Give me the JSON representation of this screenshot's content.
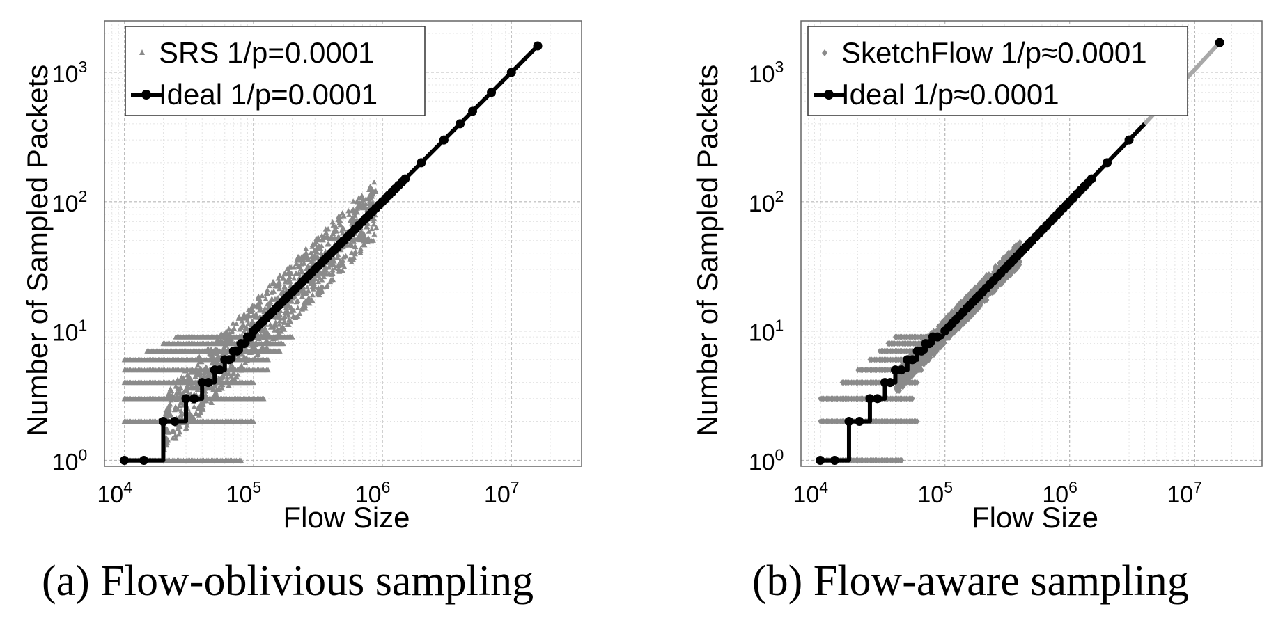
{
  "chart_data": [
    {
      "id": "a",
      "type": "scatter",
      "caption": "(a) Flow-oblivious sampling",
      "xlabel": "Flow Size",
      "ylabel": "Number of Sampled Packets",
      "xscale": "log",
      "yscale": "log",
      "xlim": [
        7000,
        35000000
      ],
      "ylim": [
        0.9,
        2500
      ],
      "xticks": [
        {
          "value": 10000,
          "base": "10",
          "exp": "4"
        },
        {
          "value": 100000,
          "base": "10",
          "exp": "5"
        },
        {
          "value": 1000000,
          "base": "10",
          "exp": "6"
        },
        {
          "value": 10000000,
          "base": "10",
          "exp": "7"
        }
      ],
      "yticks": [
        {
          "value": 1,
          "base": "10",
          "exp": "0"
        },
        {
          "value": 10,
          "base": "10",
          "exp": "1"
        },
        {
          "value": 100,
          "base": "10",
          "exp": "2"
        },
        {
          "value": 1000,
          "base": "10",
          "exp": "3"
        }
      ],
      "grid": true,
      "legend_position": "top-left",
      "series": [
        {
          "name": "SRS 1/p=0.0001",
          "kind": "sampled",
          "marker": "triangle",
          "color": "#8a8a8a",
          "bands": [
            {
              "y": 1,
              "x": [
                10000,
                80000
              ]
            },
            {
              "y": 2,
              "x": [
                10000,
                100000
              ]
            },
            {
              "y": 3,
              "x": [
                10000,
                120000
              ]
            },
            {
              "y": 4,
              "x": [
                10000,
                100000
              ]
            },
            {
              "y": 5,
              "x": [
                10000,
                130000
              ]
            },
            {
              "y": 6,
              "x": [
                10000,
                130000
              ]
            },
            {
              "y": 7,
              "x": [
                15000,
                160000
              ]
            },
            {
              "y": 8,
              "x": [
                20000,
                170000
              ]
            },
            {
              "y": 9,
              "x": [
                25000,
                200000
              ]
            }
          ],
          "cloud": {
            "x_range": [
              20000,
              900000
            ],
            "spread": 1.7
          }
        },
        {
          "name": "Ideal 1/p=0.0001",
          "kind": "ideal",
          "marker": "circle",
          "color": "#000000",
          "steps": [
            {
              "x": [
                10000,
                20000
              ],
              "y": 1
            },
            {
              "x": [
                20000,
                30000
              ],
              "y": 2
            },
            {
              "x": [
                30000,
                40000
              ],
              "y": 3
            },
            {
              "x": [
                40000,
                50000
              ],
              "y": 4
            },
            {
              "x": [
                50000,
                60000
              ],
              "y": 5
            },
            {
              "x": [
                60000,
                70000
              ],
              "y": 6
            },
            {
              "x": [
                70000,
                80000
              ],
              "y": 7
            },
            {
              "x": [
                80000,
                90000
              ],
              "y": 8
            },
            {
              "x": [
                90000,
                100000
              ],
              "y": 9
            }
          ],
          "points": [
            [
              100000,
              10
            ],
            [
              150000,
              15
            ],
            [
              200000,
              20
            ],
            [
              300000,
              30
            ],
            [
              400000,
              40
            ],
            [
              500000,
              50
            ],
            [
              700000,
              70
            ],
            [
              1000000,
              100
            ],
            [
              1500000,
              150
            ],
            [
              2000000,
              200
            ],
            [
              3000000,
              300
            ],
            [
              4000000,
              400
            ],
            [
              5000000,
              500
            ],
            [
              7000000,
              700
            ],
            [
              10000000,
              1000
            ],
            [
              16000000,
              1600
            ]
          ]
        }
      ]
    },
    {
      "id": "b",
      "type": "scatter",
      "caption": "(b) Flow-aware sampling",
      "xlabel": "Flow Size",
      "ylabel": "Number of Sampled Packets",
      "xscale": "log",
      "yscale": "log",
      "xlim": [
        7000,
        35000000
      ],
      "ylim": [
        0.9,
        2500
      ],
      "xticks": [
        {
          "value": 10000,
          "base": "10",
          "exp": "4"
        },
        {
          "value": 100000,
          "base": "10",
          "exp": "5"
        },
        {
          "value": 1000000,
          "base": "10",
          "exp": "6"
        },
        {
          "value": 10000000,
          "base": "10",
          "exp": "7"
        }
      ],
      "yticks": [
        {
          "value": 1,
          "base": "10",
          "exp": "0"
        },
        {
          "value": 10,
          "base": "10",
          "exp": "1"
        },
        {
          "value": 100,
          "base": "10",
          "exp": "2"
        },
        {
          "value": 1000,
          "base": "10",
          "exp": "3"
        }
      ],
      "grid": true,
      "legend_position": "top-left",
      "series": [
        {
          "name": "SketchFlow 1/p≈0.0001",
          "kind": "sampled",
          "marker": "diamond",
          "color": "#8a8a8a",
          "bands": [
            {
              "y": 1,
              "x": [
                10000,
                45000
              ]
            },
            {
              "y": 2,
              "x": [
                10000,
                60000
              ]
            },
            {
              "y": 3,
              "x": [
                10000,
                55000
              ]
            },
            {
              "y": 4,
              "x": [
                15000,
                60000
              ]
            },
            {
              "y": 5,
              "x": [
                20000,
                65000
              ]
            },
            {
              "y": 6,
              "x": [
                25000,
                70000
              ]
            },
            {
              "y": 7,
              "x": [
                30000,
                80000
              ]
            },
            {
              "y": 8,
              "x": [
                35000,
                85000
              ]
            },
            {
              "y": 9,
              "x": [
                40000,
                90000
              ]
            }
          ],
          "cloud": {
            "x_range": [
              40000,
              400000
            ],
            "spread": 1.25
          }
        },
        {
          "name": "Ideal 1/p≈0.0001",
          "kind": "ideal",
          "marker": "circle",
          "color": "#000000",
          "steps": [
            {
              "x": [
                10000,
                17000
              ],
              "y": 1
            },
            {
              "x": [
                17000,
                25000
              ],
              "y": 2
            },
            {
              "x": [
                25000,
                33000
              ],
              "y": 3
            },
            {
              "x": [
                33000,
                40000
              ],
              "y": 4
            },
            {
              "x": [
                40000,
                50000
              ],
              "y": 5
            },
            {
              "x": [
                50000,
                60000
              ],
              "y": 6
            },
            {
              "x": [
                60000,
                70000
              ],
              "y": 7
            },
            {
              "x": [
                70000,
                80000
              ],
              "y": 8
            },
            {
              "x": [
                80000,
                95000
              ],
              "y": 9
            }
          ],
          "points": [
            [
              100000,
              10
            ],
            [
              150000,
              15
            ],
            [
              200000,
              20
            ],
            [
              300000,
              30
            ],
            [
              400000,
              40
            ],
            [
              500000,
              50
            ],
            [
              700000,
              70
            ],
            [
              1000000,
              100
            ],
            [
              1500000,
              150
            ],
            [
              2000000,
              200
            ],
            [
              3000000,
              300
            ],
            [
              4000000,
              400
            ],
            [
              16000000,
              1700
            ]
          ],
          "tail": {
            "x": [
              4000000,
              16000000
            ],
            "y": [
              400,
              1700
            ],
            "color": "#a8a8a8",
            "marker_at": [
              5000000,
              500
            ]
          }
        }
      ]
    }
  ]
}
